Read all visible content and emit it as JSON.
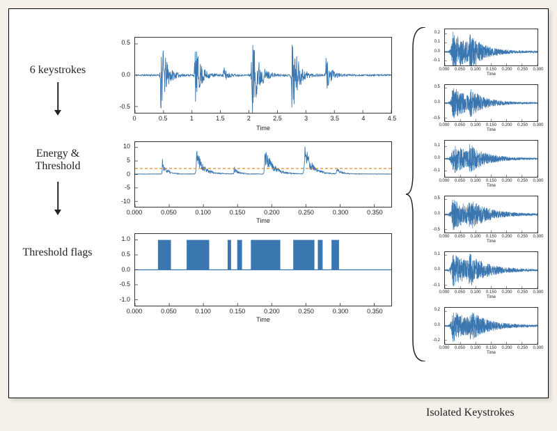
{
  "colors": {
    "line": "#3a76af",
    "threshold": "#e08b2c",
    "axis": "#333333",
    "bg": "#ffffff",
    "page_bg": "#f5f1ea",
    "text": "#222222"
  },
  "font": {
    "label_family": "Georgia, serif",
    "tick_family": "sans-serif",
    "stage_size_pt": 16,
    "tick_size_pt": 9,
    "mini_tick_size_pt": 6
  },
  "stages": {
    "s1": "6 keystrokes",
    "s2a": "Energy &",
    "s2b": "Threshold",
    "s3": "Threshold flags",
    "iso": "Isolated Keystrokes"
  },
  "plot1": {
    "type": "line",
    "xlim": [
      0,
      4.5
    ],
    "ylim": [
      -0.6,
      0.6
    ],
    "xticks": [
      0,
      0.5,
      1,
      1.5,
      2,
      2.5,
      3,
      3.5,
      4,
      4.5
    ],
    "yticks": [
      -0.5,
      0.0,
      0.5
    ],
    "xlabel": "Time",
    "bursts": [
      {
        "t": 0.45,
        "amp": 0.65,
        "width": 0.28
      },
      {
        "t": 1.05,
        "amp": 0.52,
        "width": 0.28
      },
      {
        "t": 1.55,
        "amp": 0.15,
        "width": 0.2
      },
      {
        "t": 2.05,
        "amp": 0.72,
        "width": 0.32
      },
      {
        "t": 2.75,
        "amp": 0.7,
        "width": 0.3
      },
      {
        "t": 3.35,
        "amp": 0.3,
        "width": 0.25
      }
    ]
  },
  "plot2": {
    "type": "line",
    "xlim": [
      0.0,
      0.375
    ],
    "ylim": [
      -12,
      12
    ],
    "xticks": [
      0.0,
      0.05,
      0.1,
      0.15,
      0.2,
      0.25,
      0.3,
      0.35
    ],
    "yticks": [
      -10,
      -5,
      0,
      5,
      10
    ],
    "xlabel": "Time",
    "threshold_y": 2.2,
    "bursts": [
      {
        "t": 0.04,
        "amp": 5.5,
        "width": 0.018
      },
      {
        "t": 0.09,
        "amp": 10.5,
        "width": 0.028
      },
      {
        "t": 0.145,
        "amp": 2.9,
        "width": 0.016
      },
      {
        "t": 0.19,
        "amp": 11.2,
        "width": 0.032
      },
      {
        "t": 0.248,
        "amp": 11.8,
        "width": 0.03
      },
      {
        "t": 0.295,
        "amp": 3.4,
        "width": 0.016
      }
    ]
  },
  "plot3": {
    "type": "binary-flags",
    "xlim": [
      0.0,
      0.375
    ],
    "ylim": [
      -1.2,
      1.2
    ],
    "xticks": [
      0.0,
      0.05,
      0.1,
      0.15,
      0.2,
      0.25,
      0.3,
      0.35
    ],
    "yticks": [
      -1.0,
      -0.5,
      0.0,
      0.5,
      1.0
    ],
    "xlabel": "Time",
    "flags": [
      {
        "start": 0.034,
        "end": 0.052
      },
      {
        "start": 0.076,
        "end": 0.108
      },
      {
        "start": 0.136,
        "end": 0.14
      },
      {
        "start": 0.15,
        "end": 0.156
      },
      {
        "start": 0.17,
        "end": 0.212
      },
      {
        "start": 0.232,
        "end": 0.262
      },
      {
        "start": 0.268,
        "end": 0.274
      },
      {
        "start": 0.288,
        "end": 0.298
      }
    ]
  },
  "mini_common": {
    "type": "line",
    "xlim": [
      0.0,
      0.3
    ],
    "xticks": [
      0.0,
      0.05,
      0.1,
      0.15,
      0.2,
      0.25,
      0.3
    ],
    "xlabel": "Time"
  },
  "minis": [
    {
      "ylim": [
        -0.15,
        0.25
      ],
      "yticks": [
        -0.1,
        0.0,
        0.1,
        0.2
      ],
      "amp_peak": 0.22,
      "decay": 0.18
    },
    {
      "ylim": [
        -0.6,
        0.6
      ],
      "yticks": [
        -0.5,
        0.0,
        0.5
      ],
      "amp_peak": 0.55,
      "decay": 0.18
    },
    {
      "ylim": [
        -0.15,
        0.15
      ],
      "yticks": [
        -0.1,
        0.0,
        0.1
      ],
      "amp_peak": 0.13,
      "decay": 0.2
    },
    {
      "ylim": [
        -0.6,
        0.6
      ],
      "yticks": [
        -0.5,
        0.0,
        0.5
      ],
      "amp_peak": 0.55,
      "decay": 0.22
    },
    {
      "ylim": [
        -0.12,
        0.12
      ],
      "yticks": [
        -0.1,
        0.0,
        0.1
      ],
      "amp_peak": 0.11,
      "decay": 0.22
    },
    {
      "ylim": [
        -0.25,
        0.25
      ],
      "yticks": [
        -0.2,
        0.0,
        0.2
      ],
      "amp_peak": 0.22,
      "decay": 0.22
    }
  ]
}
